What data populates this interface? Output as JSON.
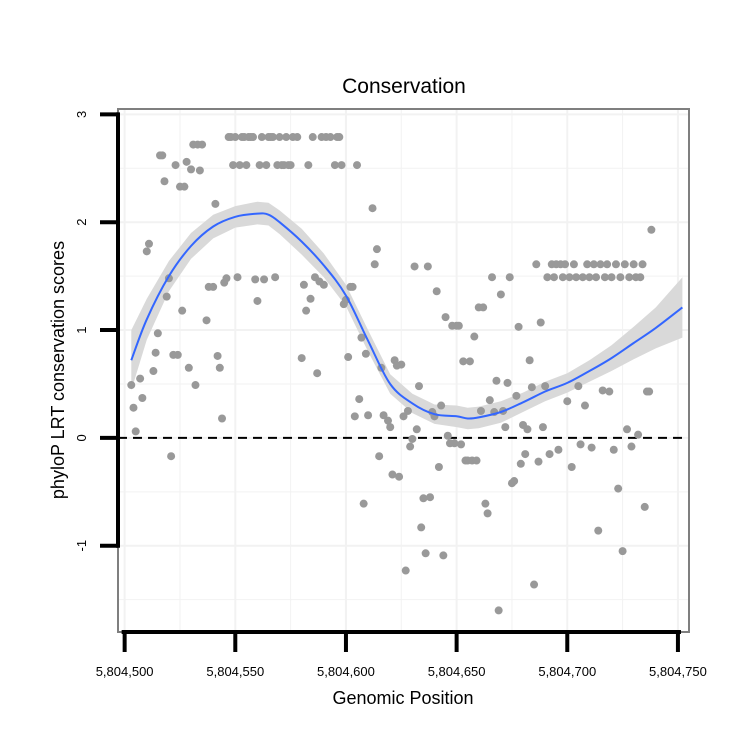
{
  "chart_data": {
    "type": "scatter",
    "title": "Conservation",
    "xlabel": "Genomic Position",
    "ylabel": "phyloP LRT conservation scores",
    "xlim": [
      5804497,
      5804755
    ],
    "ylim": [
      -1.8,
      3.05
    ],
    "x_ticks": [
      5804500,
      5804550,
      5804600,
      5804650,
      5804700,
      5804750
    ],
    "x_tick_labels": [
      "5,804,500",
      "5,804,550",
      "5,804,600",
      "5,804,650",
      "5,804,700",
      "5,804,750"
    ],
    "y_ticks": [
      -1,
      0,
      1,
      2,
      3
    ],
    "y_tick_labels": [
      "-1",
      "0",
      "1",
      "2",
      "3"
    ],
    "reference_line": {
      "y": 0,
      "style": "dashed"
    },
    "colors": {
      "points": "#999999",
      "smooth_line": "#3366ff",
      "confidence_band": "#d9d9d9",
      "panel_border": "#7f7f7f",
      "grid": "#f2f2f2"
    },
    "points": [
      [
        5804503,
        0.49
      ],
      [
        5804504,
        0.28
      ],
      [
        5804505,
        0.06
      ],
      [
        5804507,
        0.55
      ],
      [
        5804508,
        0.37
      ],
      [
        5804510,
        1.73
      ],
      [
        5804511,
        1.8
      ],
      [
        5804513,
        0.62
      ],
      [
        5804514,
        0.79
      ],
      [
        5804515,
        0.97
      ],
      [
        5804516,
        2.62
      ],
      [
        5804517,
        2.62
      ],
      [
        5804518,
        2.38
      ],
      [
        5804519,
        1.31
      ],
      [
        5804520,
        1.48
      ],
      [
        5804521,
        -0.17
      ],
      [
        5804522,
        0.77
      ],
      [
        5804523,
        2.53
      ],
      [
        5804524,
        0.77
      ],
      [
        5804525,
        2.33
      ],
      [
        5804526,
        1.18
      ],
      [
        5804527,
        2.33
      ],
      [
        5804528,
        2.56
      ],
      [
        5804529,
        0.65
      ],
      [
        5804530,
        2.49
      ],
      [
        5804531,
        2.72
      ],
      [
        5804532,
        0.49
      ],
      [
        5804533,
        2.72
      ],
      [
        5804534,
        2.48
      ],
      [
        5804535,
        2.72
      ],
      [
        5804537,
        1.09
      ],
      [
        5804538,
        1.4
      ],
      [
        5804540,
        1.4
      ],
      [
        5804541,
        2.17
      ],
      [
        5804542,
        0.76
      ],
      [
        5804543,
        0.65
      ],
      [
        5804544,
        0.18
      ],
      [
        5804545,
        1.44
      ],
      [
        5804546,
        1.48
      ],
      [
        5804547,
        2.79
      ],
      [
        5804548,
        2.79
      ],
      [
        5804549,
        2.53
      ],
      [
        5804550,
        2.79
      ],
      [
        5804551,
        1.49
      ],
      [
        5804552,
        2.53
      ],
      [
        5804553,
        2.79
      ],
      [
        5804554,
        2.79
      ],
      [
        5804555,
        2.53
      ],
      [
        5804556,
        2.79
      ],
      [
        5804557,
        2.79
      ],
      [
        5804558,
        2.79
      ],
      [
        5804559,
        1.47
      ],
      [
        5804560,
        1.27
      ],
      [
        5804561,
        2.53
      ],
      [
        5804562,
        2.79
      ],
      [
        5804563,
        1.47
      ],
      [
        5804564,
        2.53
      ],
      [
        5804565,
        2.79
      ],
      [
        5804566,
        2.79
      ],
      [
        5804567,
        2.79
      ],
      [
        5804568,
        1.49
      ],
      [
        5804569,
        2.53
      ],
      [
        5804570,
        2.79
      ],
      [
        5804571,
        2.53
      ],
      [
        5804572,
        2.53
      ],
      [
        5804573,
        2.79
      ],
      [
        5804574,
        2.53
      ],
      [
        5804575,
        2.53
      ],
      [
        5804576,
        2.79
      ],
      [
        5804578,
        2.79
      ],
      [
        5804580,
        0.74
      ],
      [
        5804581,
        1.42
      ],
      [
        5804582,
        1.18
      ],
      [
        5804583,
        2.53
      ],
      [
        5804584,
        1.29
      ],
      [
        5804585,
        2.79
      ],
      [
        5804586,
        1.49
      ],
      [
        5804587,
        0.6
      ],
      [
        5804588,
        1.45
      ],
      [
        5804589,
        2.79
      ],
      [
        5804590,
        1.42
      ],
      [
        5804591,
        2.79
      ],
      [
        5804593,
        2.79
      ],
      [
        5804595,
        2.53
      ],
      [
        5804596,
        2.79
      ],
      [
        5804597,
        2.79
      ],
      [
        5804598,
        2.53
      ],
      [
        5804599,
        1.24
      ],
      [
        5804600,
        1.28
      ],
      [
        5804601,
        0.75
      ],
      [
        5804602,
        1.4
      ],
      [
        5804603,
        1.4
      ],
      [
        5804604,
        0.2
      ],
      [
        5804605,
        2.53
      ],
      [
        5804606,
        0.36
      ],
      [
        5804607,
        0.93
      ],
      [
        5804608,
        -0.61
      ],
      [
        5804609,
        0.78
      ],
      [
        5804610,
        0.21
      ],
      [
        5804612,
        2.13
      ],
      [
        5804613,
        1.61
      ],
      [
        5804614,
        1.75
      ],
      [
        5804615,
        -0.17
      ],
      [
        5804616,
        0.65
      ],
      [
        5804617,
        0.21
      ],
      [
        5804619,
        0.16
      ],
      [
        5804620,
        0.1
      ],
      [
        5804621,
        -0.34
      ],
      [
        5804622,
        0.72
      ],
      [
        5804623,
        0.67
      ],
      [
        5804624,
        -0.36
      ],
      [
        5804625,
        0.68
      ],
      [
        5804626,
        0.2
      ],
      [
        5804627,
        -1.23
      ],
      [
        5804628,
        0.25
      ],
      [
        5804629,
        -0.08
      ],
      [
        5804630,
        -0.01
      ],
      [
        5804631,
        1.59
      ],
      [
        5804632,
        0.08
      ],
      [
        5804633,
        0.48
      ],
      [
        5804634,
        -0.83
      ],
      [
        5804635,
        -0.56
      ],
      [
        5804636,
        -1.07
      ],
      [
        5804637,
        1.59
      ],
      [
        5804638,
        -0.55
      ],
      [
        5804639,
        0.24
      ],
      [
        5804640,
        0.2
      ],
      [
        5804641,
        1.36
      ],
      [
        5804642,
        -0.27
      ],
      [
        5804643,
        0.3
      ],
      [
        5804644,
        -1.09
      ],
      [
        5804645,
        1.12
      ],
      [
        5804646,
        0.02
      ],
      [
        5804647,
        -0.05
      ],
      [
        5804648,
        1.04
      ],
      [
        5804649,
        -0.05
      ],
      [
        5804650,
        1.04
      ],
      [
        5804651,
        1.04
      ],
      [
        5804652,
        -0.06
      ],
      [
        5804653,
        0.71
      ],
      [
        5804654,
        -0.21
      ],
      [
        5804655,
        -0.21
      ],
      [
        5804656,
        0.71
      ],
      [
        5804657,
        -0.21
      ],
      [
        5804658,
        0.94
      ],
      [
        5804659,
        -0.21
      ],
      [
        5804660,
        1.21
      ],
      [
        5804661,
        0.25
      ],
      [
        5804662,
        1.21
      ],
      [
        5804663,
        -0.61
      ],
      [
        5804664,
        -0.7
      ],
      [
        5804665,
        0.35
      ],
      [
        5804666,
        1.49
      ],
      [
        5804667,
        0.24
      ],
      [
        5804668,
        0.53
      ],
      [
        5804669,
        -1.6
      ],
      [
        5804670,
        1.33
      ],
      [
        5804671,
        0.25
      ],
      [
        5804672,
        0.1
      ],
      [
        5804673,
        0.51
      ],
      [
        5804674,
        1.49
      ],
      [
        5804675,
        -0.42
      ],
      [
        5804676,
        -0.4
      ],
      [
        5804677,
        0.39
      ],
      [
        5804678,
        1.03
      ],
      [
        5804679,
        -0.24
      ],
      [
        5804680,
        0.12
      ],
      [
        5804681,
        -0.15
      ],
      [
        5804682,
        0.08
      ],
      [
        5804683,
        0.72
      ],
      [
        5804684,
        0.47
      ],
      [
        5804685,
        -1.36
      ],
      [
        5804686,
        1.61
      ],
      [
        5804687,
        -0.22
      ],
      [
        5804688,
        1.07
      ],
      [
        5804689,
        0.1
      ],
      [
        5804690,
        0.48
      ],
      [
        5804691,
        1.49
      ],
      [
        5804692,
        -0.15
      ],
      [
        5804693,
        1.61
      ],
      [
        5804694,
        1.49
      ],
      [
        5804695,
        1.61
      ],
      [
        5804696,
        -0.11
      ],
      [
        5804697,
        1.61
      ],
      [
        5804698,
        1.49
      ],
      [
        5804699,
        1.61
      ],
      [
        5804700,
        0.34
      ],
      [
        5804701,
        1.49
      ],
      [
        5804702,
        -0.27
      ],
      [
        5804703,
        1.61
      ],
      [
        5804704,
        1.49
      ],
      [
        5804705,
        0.48
      ],
      [
        5804706,
        -0.06
      ],
      [
        5804707,
        1.49
      ],
      [
        5804708,
        0.3
      ],
      [
        5804709,
        1.61
      ],
      [
        5804710,
        1.49
      ],
      [
        5804711,
        -0.09
      ],
      [
        5804712,
        1.61
      ],
      [
        5804713,
        1.49
      ],
      [
        5804714,
        -0.86
      ],
      [
        5804715,
        1.61
      ],
      [
        5804716,
        0.44
      ],
      [
        5804717,
        1.49
      ],
      [
        5804718,
        1.61
      ],
      [
        5804719,
        0.43
      ],
      [
        5804720,
        1.49
      ],
      [
        5804721,
        -0.11
      ],
      [
        5804722,
        1.61
      ],
      [
        5804723,
        -0.47
      ],
      [
        5804724,
        1.49
      ],
      [
        5804725,
        -1.05
      ],
      [
        5804726,
        1.61
      ],
      [
        5804727,
        0.08
      ],
      [
        5804728,
        1.49
      ],
      [
        5804729,
        -0.08
      ],
      [
        5804730,
        1.61
      ],
      [
        5804731,
        1.49
      ],
      [
        5804732,
        0.03
      ],
      [
        5804733,
        1.49
      ],
      [
        5804734,
        1.61
      ],
      [
        5804735,
        -0.64
      ],
      [
        5804736,
        0.43
      ],
      [
        5804737,
        0.43
      ],
      [
        5804738,
        1.93
      ]
    ],
    "smooth_fit": {
      "x": [
        5804503,
        5804510,
        5804520,
        5804530,
        5804540,
        5804550,
        5804560,
        5804565,
        5804570,
        5804580,
        5804590,
        5804600,
        5804610,
        5804620,
        5804630,
        5804640,
        5804650,
        5804655,
        5804660,
        5804670,
        5804680,
        5804690,
        5804700,
        5804710,
        5804720,
        5804730,
        5804740,
        5804752
      ],
      "y": [
        0.72,
        1.1,
        1.5,
        1.78,
        1.96,
        2.05,
        2.08,
        2.07,
        2.0,
        1.82,
        1.6,
        1.32,
        0.9,
        0.5,
        0.32,
        0.22,
        0.2,
        0.18,
        0.19,
        0.24,
        0.33,
        0.43,
        0.51,
        0.62,
        0.74,
        0.88,
        1.02,
        1.21
      ],
      "ci_lower": [
        0.44,
        0.91,
        1.36,
        1.66,
        1.85,
        1.95,
        1.98,
        1.97,
        1.89,
        1.7,
        1.49,
        1.22,
        0.8,
        0.41,
        0.23,
        0.13,
        0.1,
        0.08,
        0.09,
        0.14,
        0.24,
        0.34,
        0.42,
        0.52,
        0.62,
        0.73,
        0.83,
        0.93
      ],
      "ci_upper": [
        1.0,
        1.29,
        1.64,
        1.9,
        2.07,
        2.15,
        2.19,
        2.18,
        2.11,
        1.94,
        1.71,
        1.42,
        1.0,
        0.59,
        0.41,
        0.31,
        0.3,
        0.28,
        0.29,
        0.34,
        0.42,
        0.52,
        0.6,
        0.72,
        0.86,
        1.03,
        1.21,
        1.49
      ]
    }
  }
}
